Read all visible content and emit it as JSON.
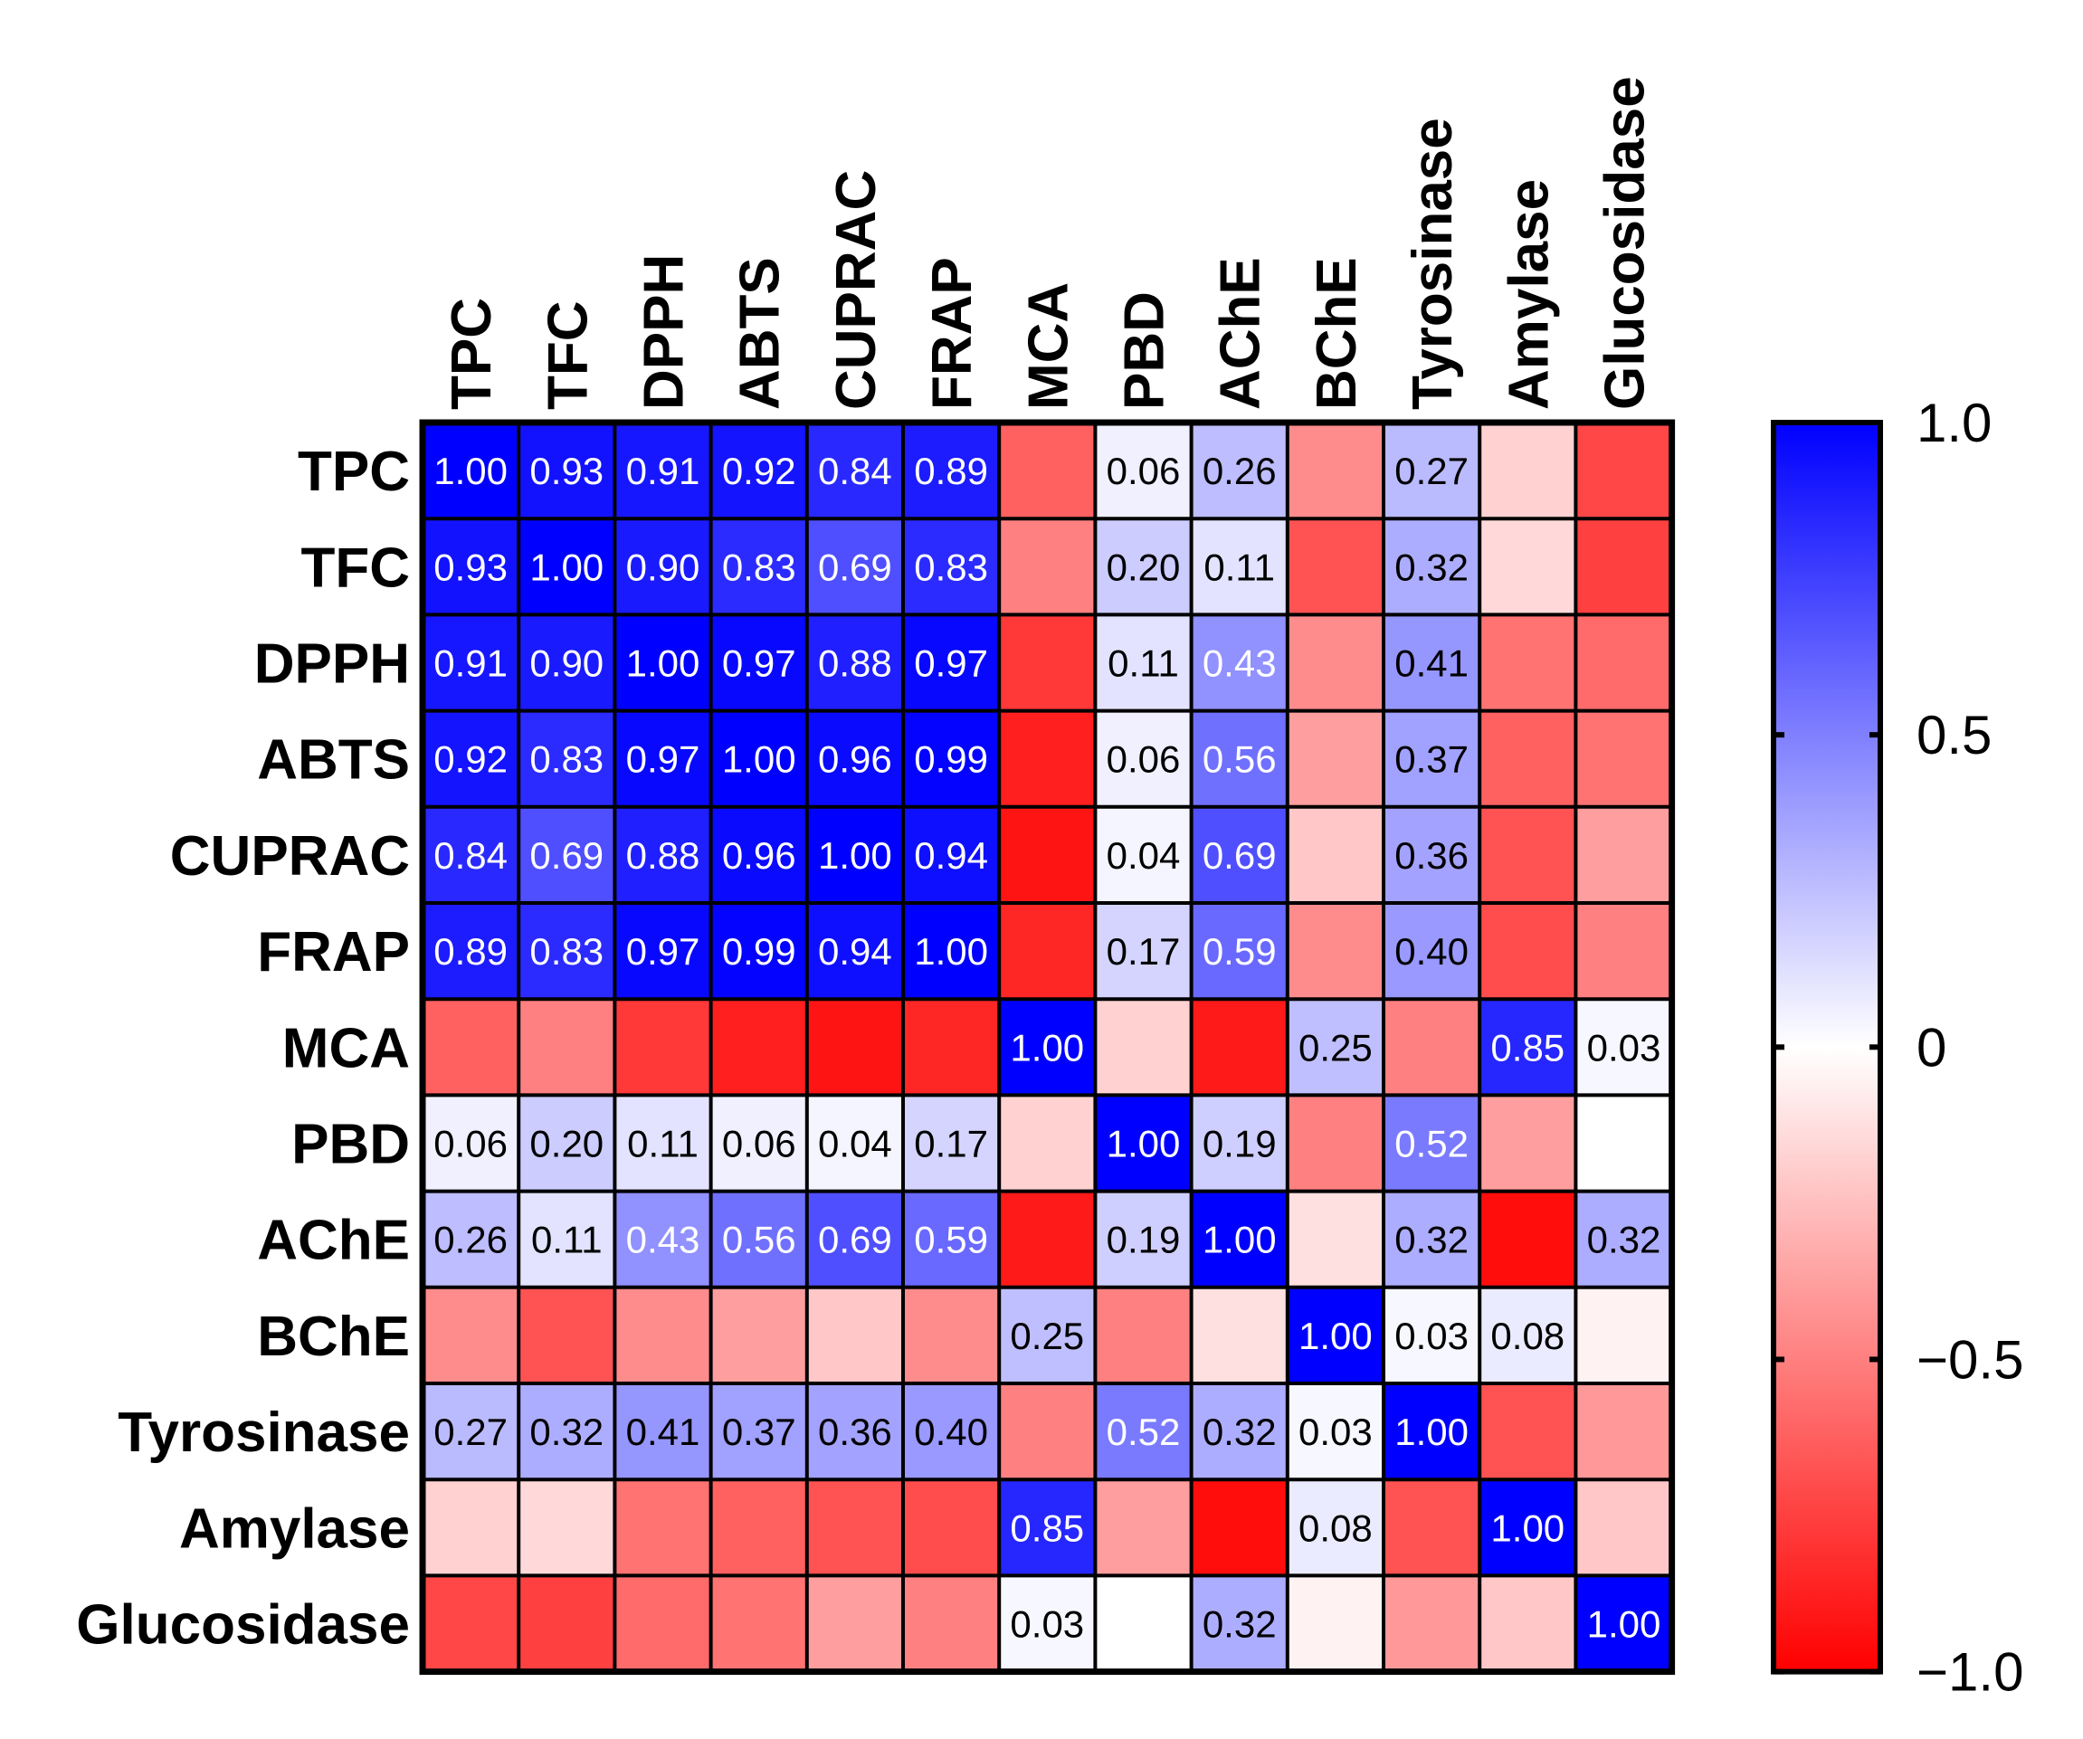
{
  "chart_data": {
    "type": "heatmap",
    "title": "",
    "variables": [
      "TPC",
      "TFC",
      "DPPH",
      "ABTS",
      "CUPRAC",
      "FRAP",
      "MCA",
      "PBD",
      "AChE",
      "BChE",
      "Tyrosinase",
      "Amylase",
      "Glucosidase"
    ],
    "matrix": [
      [
        1.0,
        0.93,
        0.91,
        0.92,
        0.84,
        0.89,
        -0.62,
        0.06,
        0.26,
        -0.45,
        0.27,
        -0.18,
        -0.72
      ],
      [
        0.93,
        1.0,
        0.9,
        0.83,
        0.69,
        0.83,
        -0.5,
        0.2,
        0.11,
        -0.68,
        0.32,
        -0.15,
        -0.75
      ],
      [
        0.91,
        0.9,
        1.0,
        0.97,
        0.88,
        0.97,
        -0.78,
        0.11,
        0.43,
        -0.45,
        0.41,
        -0.55,
        -0.58
      ],
      [
        0.92,
        0.83,
        0.97,
        1.0,
        0.96,
        0.99,
        -0.88,
        0.06,
        0.56,
        -0.38,
        0.37,
        -0.62,
        -0.55
      ],
      [
        0.84,
        0.69,
        0.88,
        0.96,
        1.0,
        0.94,
        -0.92,
        0.04,
        0.69,
        -0.22,
        0.36,
        -0.68,
        -0.38
      ],
      [
        0.89,
        0.83,
        0.97,
        0.99,
        0.94,
        1.0,
        -0.85,
        0.17,
        0.59,
        -0.45,
        0.4,
        -0.7,
        -0.5
      ],
      [
        -0.62,
        -0.5,
        -0.78,
        -0.88,
        -0.92,
        -0.85,
        1.0,
        -0.18,
        -0.9,
        0.25,
        -0.5,
        0.85,
        0.03
      ],
      [
        0.06,
        0.2,
        0.11,
        0.06,
        0.04,
        0.17,
        -0.18,
        1.0,
        0.19,
        -0.5,
        0.52,
        -0.38,
        0.0
      ],
      [
        0.26,
        0.11,
        0.43,
        0.56,
        0.69,
        0.59,
        -0.9,
        0.19,
        1.0,
        -0.12,
        0.32,
        -0.95,
        0.32
      ],
      [
        -0.45,
        -0.68,
        -0.45,
        -0.38,
        -0.22,
        -0.45,
        0.25,
        -0.5,
        -0.12,
        1.0,
        0.03,
        0.08,
        -0.05
      ],
      [
        0.27,
        0.32,
        0.41,
        0.37,
        0.36,
        0.4,
        -0.5,
        0.52,
        0.32,
        0.03,
        1.0,
        -0.68,
        -0.4
      ],
      [
        -0.18,
        -0.15,
        -0.55,
        -0.62,
        -0.68,
        -0.7,
        0.85,
        -0.38,
        -0.95,
        0.08,
        -0.68,
        1.0,
        -0.22
      ],
      [
        -0.72,
        -0.75,
        -0.58,
        -0.55,
        -0.38,
        -0.5,
        0.03,
        0.0,
        0.32,
        -0.05,
        -0.4,
        -0.22,
        1.0
      ]
    ],
    "cell_labels": [
      [
        "1.00",
        "0.93",
        "0.91",
        "0.92",
        "0.84",
        "0.89",
        "",
        "0.06",
        "0.26",
        "",
        "0.27",
        "",
        ""
      ],
      [
        "0.93",
        "1.00",
        "0.90",
        "0.83",
        "0.69",
        "0.83",
        "",
        "0.20",
        "0.11",
        "",
        "0.32",
        "",
        ""
      ],
      [
        "0.91",
        "0.90",
        "1.00",
        "0.97",
        "0.88",
        "0.97",
        "",
        "0.11",
        "0.43",
        "",
        "0.41",
        "",
        ""
      ],
      [
        "0.92",
        "0.83",
        "0.97",
        "1.00",
        "0.96",
        "0.99",
        "",
        "0.06",
        "0.56",
        "",
        "0.37",
        "",
        ""
      ],
      [
        "0.84",
        "0.69",
        "0.88",
        "0.96",
        "1.00",
        "0.94",
        "",
        "0.04",
        "0.69",
        "",
        "0.36",
        "",
        ""
      ],
      [
        "0.89",
        "0.83",
        "0.97",
        "0.99",
        "0.94",
        "1.00",
        "",
        "0.17",
        "0.59",
        "",
        "0.40",
        "",
        ""
      ],
      [
        "",
        "",
        "",
        "",
        "",
        "",
        "1.00",
        "",
        "",
        "0.25",
        "",
        "0.85",
        "0.03"
      ],
      [
        "0.06",
        "0.20",
        "0.11",
        "0.06",
        "0.04",
        "0.17",
        "",
        "1.00",
        "0.19",
        "",
        "0.52",
        "",
        ""
      ],
      [
        "0.26",
        "0.11",
        "0.43",
        "0.56",
        "0.69",
        "0.59",
        "",
        "0.19",
        "1.00",
        "",
        "0.32",
        "",
        "0.32"
      ],
      [
        "",
        "",
        "",
        "",
        "",
        "",
        "0.25",
        "",
        "",
        "1.00",
        "0.03",
        "0.08",
        ""
      ],
      [
        "0.27",
        "0.32",
        "0.41",
        "0.37",
        "0.36",
        "0.40",
        "",
        "0.52",
        "0.32",
        "0.03",
        "1.00",
        "",
        ""
      ],
      [
        "",
        "",
        "",
        "",
        "",
        "",
        "0.85",
        "",
        "",
        "0.08",
        "",
        "1.00",
        ""
      ],
      [
        "",
        "",
        "",
        "",
        "",
        "",
        "0.03",
        "",
        "0.32",
        "",
        "",
        "",
        "1.00"
      ]
    ],
    "colorbar": {
      "range": [
        -1.0,
        1.0
      ],
      "ticks": [
        -1.0,
        -0.5,
        0,
        0.5,
        1.0
      ],
      "tick_labels": [
        "−1.0",
        "−0.5",
        "0",
        "0.5",
        "1.0"
      ],
      "colors": {
        "low": "#ff0000",
        "mid": "#ffffff",
        "high": "#0000ff"
      }
    }
  }
}
